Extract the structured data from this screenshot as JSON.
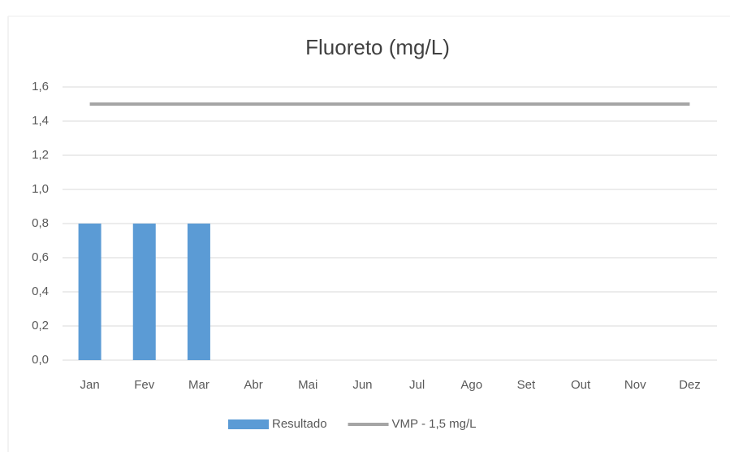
{
  "chart_data": {
    "type": "bar",
    "title": "Fluoreto (mg/L)",
    "categories": [
      "Jan",
      "Fev",
      "Mar",
      "Abr",
      "Mai",
      "Jun",
      "Jul",
      "Ago",
      "Set",
      "Out",
      "Nov",
      "Dez"
    ],
    "series": [
      {
        "name": "Resultado",
        "type": "bar",
        "color": "#5b9bd5",
        "values": [
          0.8,
          0.8,
          0.8,
          null,
          null,
          null,
          null,
          null,
          null,
          null,
          null,
          null
        ]
      },
      {
        "name": "VMP - 1,5 mg/L",
        "type": "line",
        "color": "#a5a5a5",
        "values": [
          1.5,
          1.5,
          1.5,
          1.5,
          1.5,
          1.5,
          1.5,
          1.5,
          1.5,
          1.5,
          1.5,
          1.5
        ]
      }
    ],
    "ylim": [
      0,
      1.6
    ],
    "yticks": [
      {
        "value": 0,
        "label": "0,0"
      },
      {
        "value": 0.2,
        "label": "0,2"
      },
      {
        "value": 0.4,
        "label": "0,4"
      },
      {
        "value": 0.6,
        "label": "0,6"
      },
      {
        "value": 0.8,
        "label": "0,8"
      },
      {
        "value": 1.0,
        "label": "1,0"
      },
      {
        "value": 1.2,
        "label": "1,2"
      },
      {
        "value": 1.4,
        "label": "1,4"
      },
      {
        "value": 1.6,
        "label": "1,6"
      }
    ],
    "grid": true,
    "legend": "bottom"
  }
}
